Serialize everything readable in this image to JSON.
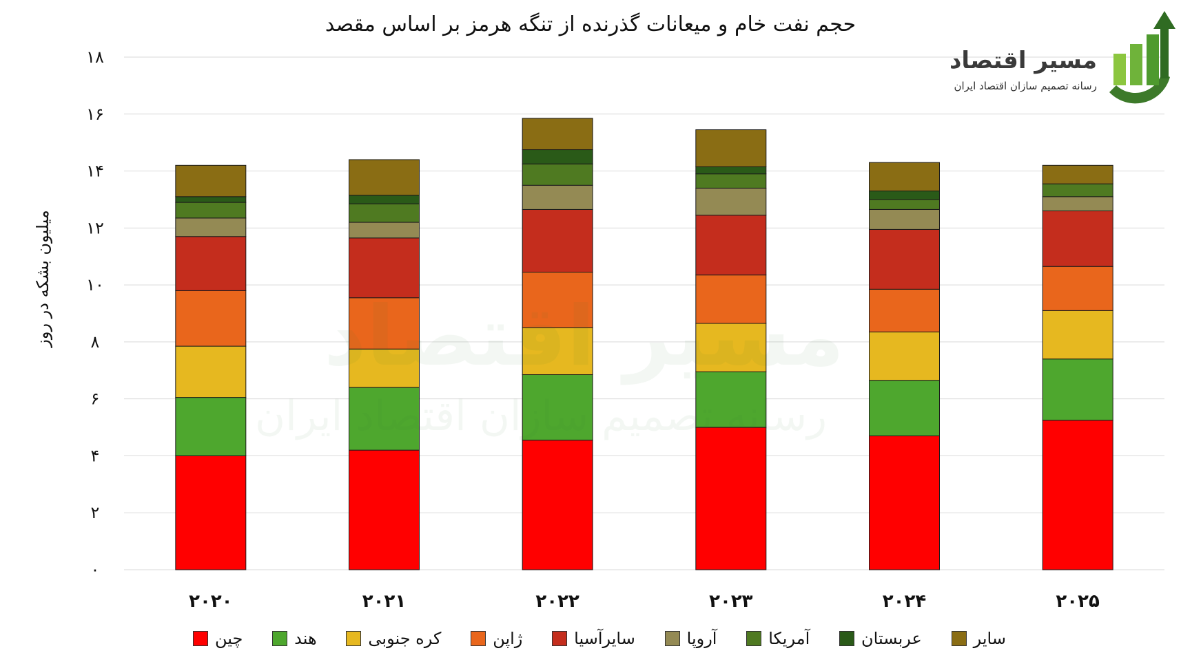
{
  "logo": {
    "title": "مسیر اقتصاد",
    "subtitle": "رسانه تصمیم سازان اقتصاد ایران"
  },
  "chart_data": {
    "type": "bar",
    "stacked": true,
    "title": "حجم نفت خام و میعانات گذرنده از تنگه هرمز بر اساس مقصد",
    "xlabel": "",
    "ylabel": "میلیون بشکه در روز",
    "ylim": [
      0,
      18
    ],
    "yticks": [
      {
        "value": 0,
        "label": "۰"
      },
      {
        "value": 2,
        "label": "۲"
      },
      {
        "value": 4,
        "label": "۴"
      },
      {
        "value": 6,
        "label": "۶"
      },
      {
        "value": 8,
        "label": "۸"
      },
      {
        "value": 10,
        "label": "۱۰"
      },
      {
        "value": 12,
        "label": "۱۲"
      },
      {
        "value": 14,
        "label": "۱۴"
      },
      {
        "value": 16,
        "label": "۱۶"
      },
      {
        "value": 18,
        "label": "۱۸"
      }
    ],
    "grid": true,
    "legend_position": "bottom",
    "categories": [
      "۲۰۲۰",
      "۲۰۲۱",
      "۲۰۲۲",
      "۲۰۲۳",
      "۲۰۲۴",
      "۲۰۲۵"
    ],
    "series": [
      {
        "name": "چین",
        "color": "#ff0000",
        "values": [
          4.0,
          4.2,
          4.55,
          5.0,
          4.7,
          5.25
        ]
      },
      {
        "name": "هند",
        "color": "#4ea72e",
        "values": [
          2.05,
          2.2,
          2.3,
          1.95,
          1.95,
          2.15
        ]
      },
      {
        "name": "کره جنوبی",
        "color": "#e6b820",
        "values": [
          1.8,
          1.35,
          1.65,
          1.7,
          1.7,
          1.7
        ]
      },
      {
        "name": "ژاپن",
        "color": "#e9661c",
        "values": [
          1.95,
          1.8,
          1.95,
          1.7,
          1.5,
          1.55
        ]
      },
      {
        "name": "سایرآسیا",
        "color": "#c42d1d",
        "values": [
          1.9,
          2.1,
          2.2,
          2.1,
          2.1,
          1.95
        ]
      },
      {
        "name": "آروپا",
        "color": "#948a54",
        "values": [
          0.65,
          0.55,
          0.85,
          0.95,
          0.7,
          0.5
        ]
      },
      {
        "name": "آمریکا",
        "color": "#4f7a21",
        "values": [
          0.55,
          0.65,
          0.75,
          0.5,
          0.35,
          0.45
        ]
      },
      {
        "name": "عربستان",
        "color": "#2a5a18",
        "values": [
          0.2,
          0.3,
          0.5,
          0.25,
          0.3,
          0.0
        ]
      },
      {
        "name": "سایر",
        "color": "#8a6d14",
        "values": [
          1.1,
          1.25,
          1.1,
          1.3,
          1.0,
          0.65
        ]
      }
    ]
  }
}
